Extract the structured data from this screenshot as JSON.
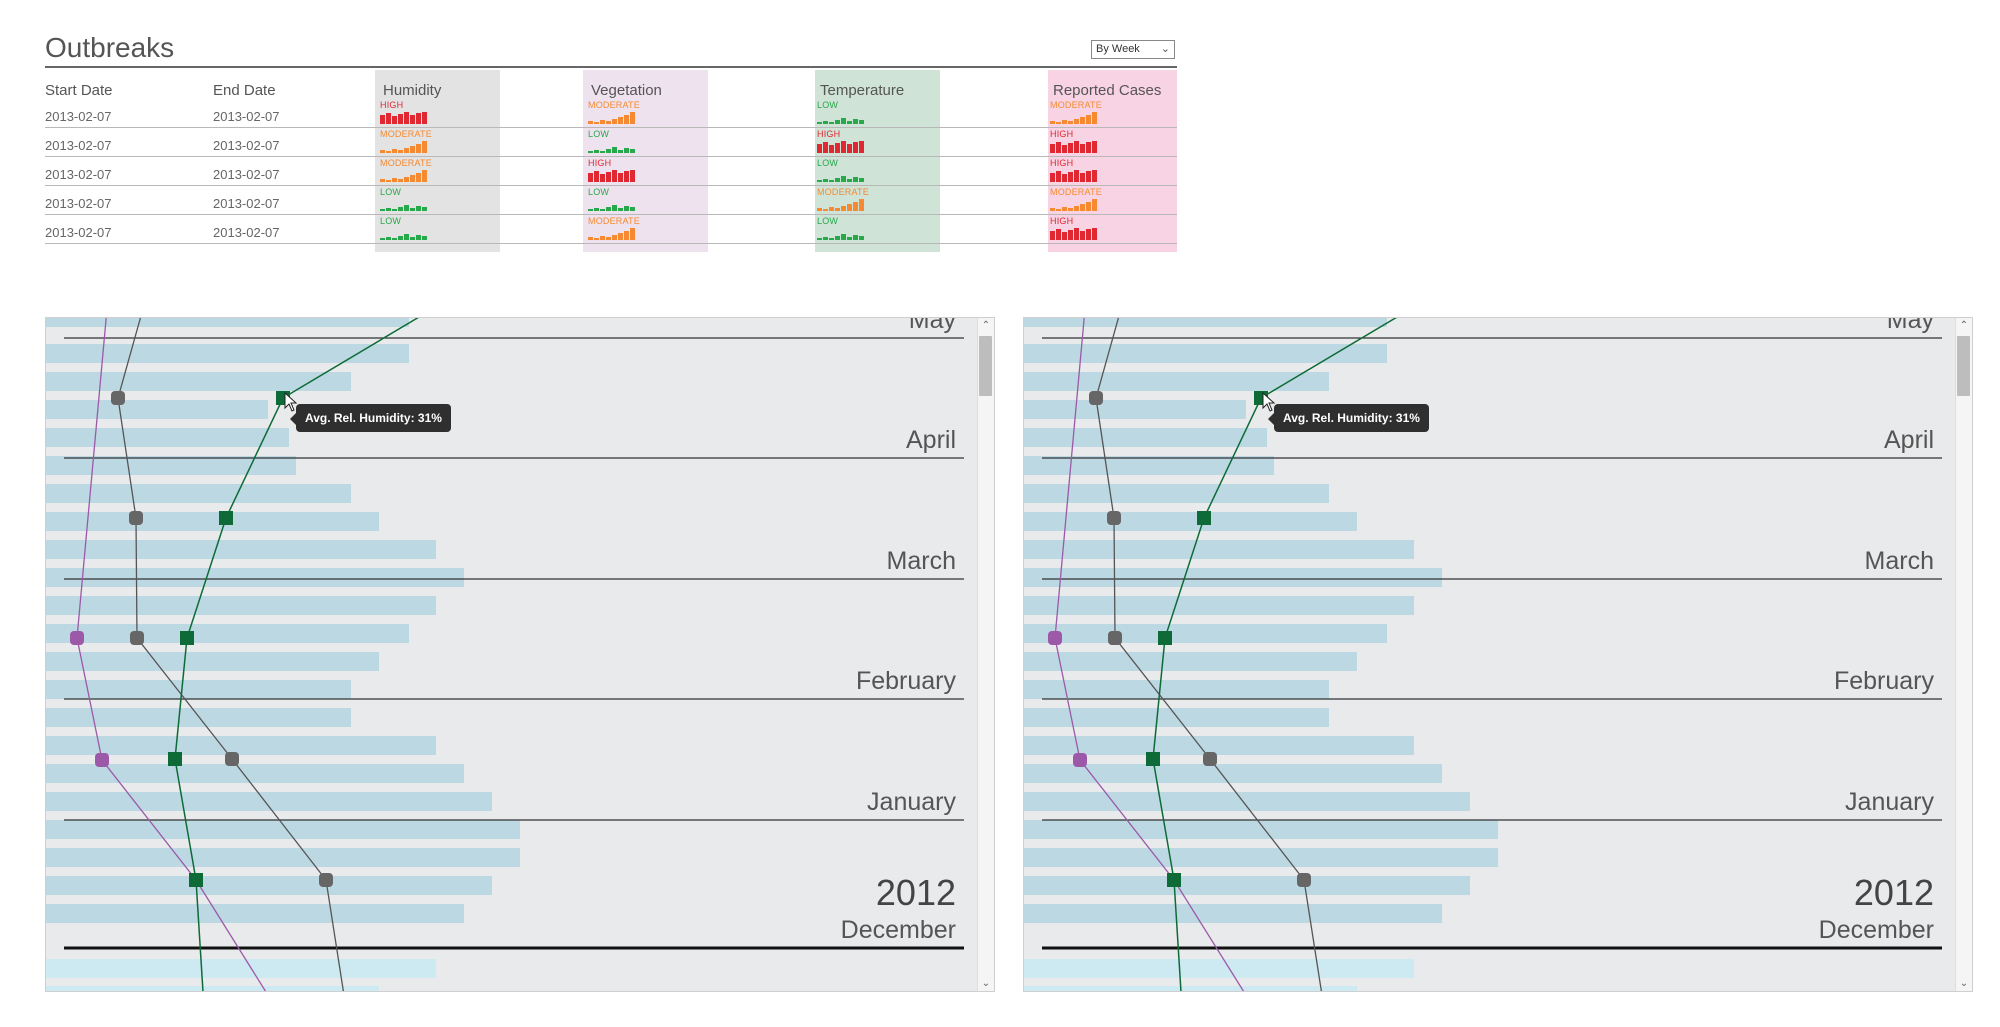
{
  "outbreaks": {
    "title": "Outbreaks",
    "view_select": {
      "value": "By Week"
    },
    "headers": {
      "start_date": "Start Date",
      "end_date": "End Date",
      "humidity": "Humidity",
      "vegetation": "Vegetation",
      "temperature": "Temperature",
      "reported_cases": "Reported Cases"
    },
    "column_colors": {
      "humidity": "#e3e3e3",
      "vegetation": "#eee2ee",
      "temperature": "#cfe3d6",
      "reported_cases": "#f8d3e3"
    },
    "level_colors": {
      "HIGH": "#e02832",
      "MODERATE": "#f58a32",
      "LOW": "#27a84a"
    },
    "rows": [
      {
        "start": "2013-02-07",
        "end": "2013-02-07",
        "humidity": "HIGH",
        "vegetation": "MODERATE",
        "temperature": "LOW",
        "reported_cases": "MODERATE"
      },
      {
        "start": "2013-02-07",
        "end": "2013-02-07",
        "humidity": "MODERATE",
        "vegetation": "LOW",
        "temperature": "HIGH",
        "reported_cases": "HIGH"
      },
      {
        "start": "2013-02-07",
        "end": "2013-02-07",
        "humidity": "MODERATE",
        "vegetation": "HIGH",
        "temperature": "LOW",
        "reported_cases": "HIGH"
      },
      {
        "start": "2013-02-07",
        "end": "2013-02-07",
        "humidity": "LOW",
        "vegetation": "LOW",
        "temperature": "MODERATE",
        "reported_cases": "MODERATE"
      },
      {
        "start": "2013-02-07",
        "end": "2013-02-07",
        "humidity": "LOW",
        "vegetation": "MODERATE",
        "temperature": "LOW",
        "reported_cases": "HIGH"
      }
    ]
  },
  "timeline": {
    "year_label": "2012",
    "months": [
      "May",
      "April",
      "March",
      "February",
      "January",
      "December"
    ],
    "tooltip": "Avg. Rel. Humidity: 31%",
    "colors": {
      "bar": "#bcd9e3",
      "bar_light": "#cde9f1",
      "humidity_line": "#0e6b37",
      "grey_line": "#555555",
      "purple_line": "#9b59a8"
    }
  }
}
